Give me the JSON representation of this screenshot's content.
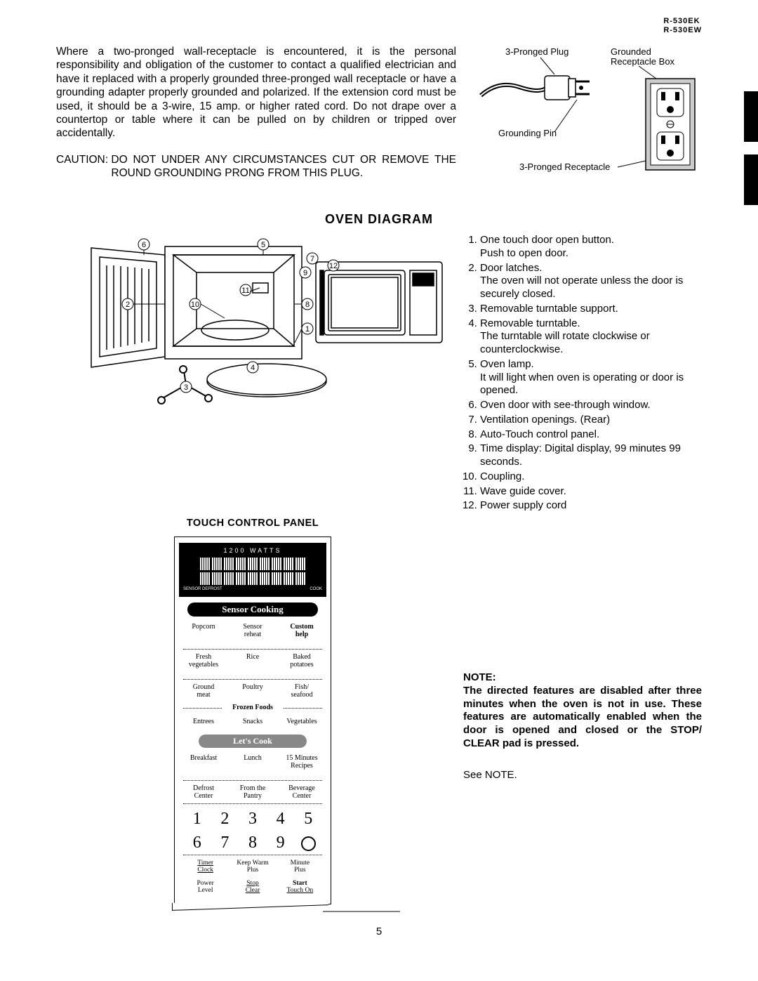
{
  "models": {
    "line1": "R-530EK",
    "line2": "R-530EW"
  },
  "intro_paragraph": "Where a two-pronged wall-receptacle is encountered, it is the personal responsibility and obligation of the customer to contact a qualified electrician and have it replaced with a properly grounded three-pronged wall receptacle or have a grounding adapter properly grounded and polarized. If the extension cord must be used, it should be a 3-wire, 15 amp. or higher rated cord. Do not drape over a countertop or table where it can be pulled on by children or tripped over accidentally.",
  "caution": {
    "label": "CAUTION: ",
    "text": "DO NOT UNDER ANY CIRCUMSTANCES CUT OR REMOVE THE ROUND GROUNDING PRONG FROM THIS PLUG."
  },
  "plug_labels": {
    "plug": "3-Pronged Plug",
    "box": "Grounded Receptacle Box",
    "pin": "Grounding Pin",
    "receptacle": "3-Pronged Receptacle"
  },
  "section_title": "OVEN DIAGRAM",
  "panel_title": "TOUCH  CONTROL PANEL",
  "display": {
    "watts": "1200   WATTS",
    "left": "SENSOR  DEFROST",
    "right": "COOK"
  },
  "pills": {
    "sensor": "Sensor Cooking",
    "lets": "Let's Cook"
  },
  "sensor_buttons": [
    [
      "Popcorn",
      "Sensor\nreheat",
      "Custom\nhelp"
    ],
    [
      "Fresh\nvegetables",
      "Rice",
      "Baked\npotatoes"
    ],
    [
      "Ground\nmeat",
      "Poultry",
      "Fish/\nseafood"
    ]
  ],
  "frozen_label": "Frozen Foods",
  "frozen_buttons": [
    "Entrees",
    "Snacks",
    "Vegetables"
  ],
  "lets_buttons": [
    [
      "Breakfast",
      "Lunch",
      "15 Minutes\nRecipes"
    ],
    [
      "Defrost\nCenter",
      "From the\nPantry",
      "Beverage\nCenter"
    ]
  ],
  "numpad": [
    "1",
    "2",
    "3",
    "4",
    "5",
    "6",
    "7",
    "8",
    "9"
  ],
  "bottom_buttons": {
    "r1": [
      {
        "top": "Timer",
        "bot": "Clock"
      },
      {
        "top": "Keep Warm",
        "bot": "Plus"
      },
      {
        "top": "Minute",
        "bot": "Plus"
      }
    ],
    "r2": [
      {
        "top": "Power",
        "bot": "Level"
      },
      {
        "top": "Stop",
        "bot": "Clear"
      },
      {
        "top": "Start",
        "bot": "Touch On"
      }
    ]
  },
  "parts": [
    {
      "t": "One touch door open button.",
      "s": "Push to open door."
    },
    {
      "t": "Door latches.",
      "s": "The oven will not operate unless the door is securely closed."
    },
    {
      "t": "Removable turntable support."
    },
    {
      "t": "Removable turntable.",
      "s": "The turntable will rotate clockwise or counterclockwise."
    },
    {
      "t": "Oven lamp.",
      "s": "It will light when oven is operating or door is opened."
    },
    {
      "t": "Oven door with see-through window."
    },
    {
      "t": "Ventilation openings. (Rear)"
    },
    {
      "t": "Auto-Touch control panel."
    },
    {
      "t": "Time display: Digital display, 99 minutes 99 seconds."
    },
    {
      "t": "Coupling."
    },
    {
      "t": "Wave guide cover."
    },
    {
      "t": "Power supply cord"
    }
  ],
  "note": {
    "title": "NOTE:",
    "body": "The directed features are disabled after three minutes when the oven is not in use. These features are automatically enabled when the door is opened and closed or the STOP/ CLEAR pad is pressed.",
    "see": "See NOTE."
  },
  "page_number": "5"
}
